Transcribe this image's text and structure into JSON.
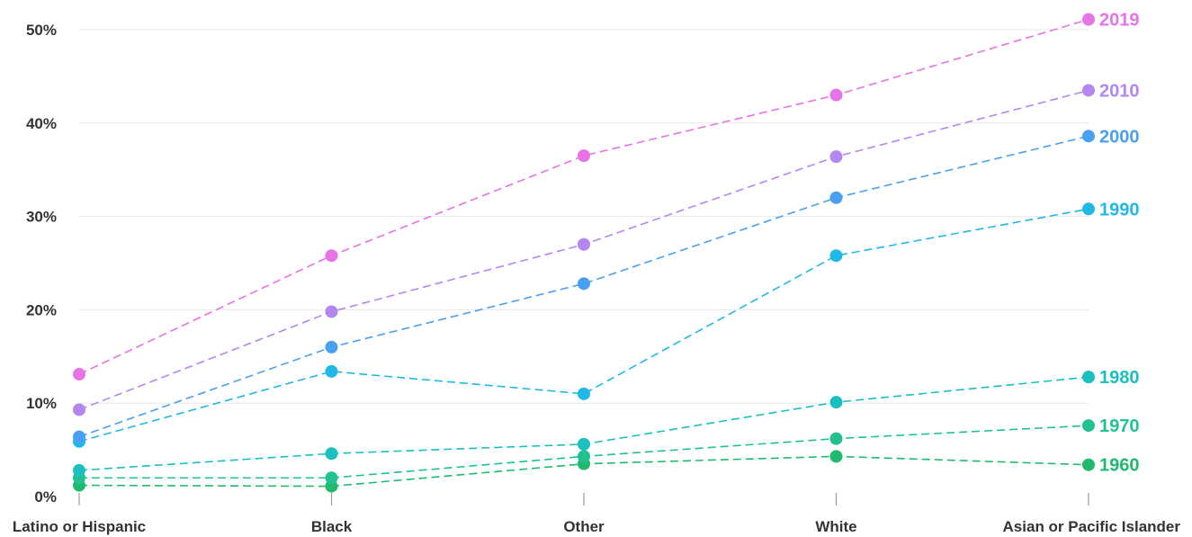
{
  "chart_data": {
    "type": "line",
    "title": "",
    "xlabel": "",
    "ylabel": "",
    "categories": [
      "Latino or Hispanic",
      "Black",
      "Other",
      "White",
      "Asian or Pacific Islander"
    ],
    "y_ticks": [
      "0%",
      "10%",
      "20%",
      "30%",
      "40%",
      "50%"
    ],
    "ylim": [
      0,
      50
    ],
    "grid": true,
    "legend": "end-of-line labels",
    "series": [
      {
        "name": "1960",
        "color": "#1fba6e",
        "values": [
          1.2,
          1.1,
          3.5,
          4.3,
          3.4
        ]
      },
      {
        "name": "1970",
        "color": "#22c191",
        "values": [
          2.0,
          2.0,
          4.3,
          6.2,
          7.6
        ]
      },
      {
        "name": "1980",
        "color": "#1bbfbf",
        "values": [
          2.8,
          4.6,
          5.6,
          10.1,
          12.8
        ]
      },
      {
        "name": "1990",
        "color": "#20b8e6",
        "values": [
          5.9,
          13.4,
          11.0,
          25.8,
          30.8
        ]
      },
      {
        "name": "2000",
        "color": "#4aa0f0",
        "values": [
          6.4,
          16.0,
          22.8,
          32.0,
          38.6
        ]
      },
      {
        "name": "2010",
        "color": "#b386f0",
        "values": [
          9.3,
          19.8,
          27.0,
          36.4,
          43.5
        ]
      },
      {
        "name": "2019",
        "color": "#e872e8",
        "values": [
          13.1,
          25.8,
          36.5,
          43.0,
          51.1
        ]
      }
    ]
  }
}
